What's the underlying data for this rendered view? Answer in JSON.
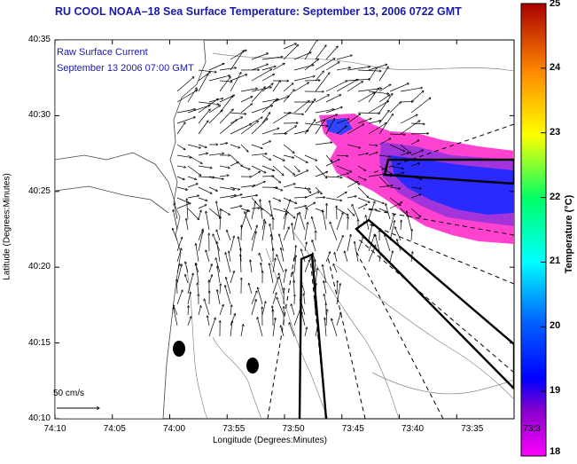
{
  "title": "RU COOL  NOAA–18  Sea Surface Temperature:  September 13, 2006 0722 GMT",
  "legend": {
    "line1": "Raw Surface Current",
    "line2": "September 13 2006 07:00 GMT"
  },
  "axes": {
    "xlabel": "Longitude (Degrees:Minutes)",
    "ylabel": "Latitude (Degrees:Minutes)",
    "xticks": [
      "74:10",
      "74:05",
      "74:00",
      "73:55",
      "73:50",
      "73:45",
      "73:40",
      "73:35",
      "73:3"
    ],
    "yticks": [
      "40:35",
      "40:30",
      "40:25",
      "40:20",
      "40:15",
      "40:10"
    ]
  },
  "colorbar": {
    "label": "Temperature (°C)",
    "ticks": [
      "25",
      "24",
      "23",
      "22",
      "21",
      "20",
      "19",
      "18"
    ],
    "range": [
      18,
      25
    ]
  },
  "scale": {
    "label": "50 cm/s"
  },
  "colors": {
    "title": "#1a1aa8",
    "warm": "#ff33cc",
    "cool": "#2a2aff"
  }
}
